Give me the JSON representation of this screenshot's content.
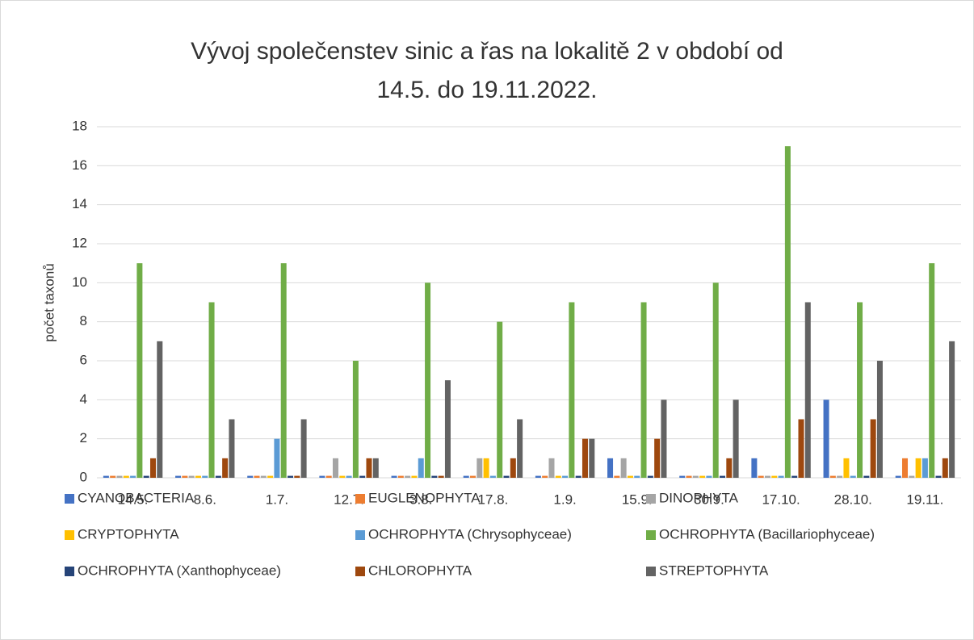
{
  "chart_data": {
    "type": "bar",
    "title": "Vývoj společenstev sinic a řas na lokalitě 2 v období od 14.5. do 19.11.2022.",
    "y_label": "počet taxonů",
    "categories": [
      "14.5.",
      "8.6.",
      "1.7.",
      "12.7.",
      "3.8.",
      "17.8.",
      "1.9.",
      "15.9.",
      "30.9.",
      "17.10.",
      "28.10.",
      "19.11."
    ],
    "series": [
      {
        "name": "CYANOBACTERIA",
        "color": "#4472c4",
        "values": [
          0.1,
          0.1,
          0.1,
          0.1,
          0.1,
          0.1,
          0.1,
          1,
          0.1,
          1,
          4,
          0.1
        ]
      },
      {
        "name": "EUGLENOPHYTA",
        "color": "#ed7d31",
        "values": [
          0.1,
          0.1,
          0.1,
          0.1,
          0.1,
          0.1,
          0.1,
          0.1,
          0.1,
          0.1,
          0.1,
          1
        ]
      },
      {
        "name": "DINOPHYTA",
        "color": "#a5a5a5",
        "values": [
          0.1,
          0.1,
          0.1,
          1,
          0.1,
          1,
          1,
          1,
          0.1,
          0.1,
          0.1,
          0.1
        ]
      },
      {
        "name": "CRYPTOPHYTA",
        "color": "#ffc000",
        "values": [
          0.1,
          0.1,
          0.1,
          0.1,
          0.1,
          1,
          0.1,
          0.1,
          0.1,
          0.1,
          1,
          1
        ]
      },
      {
        "name": "OCHROPHYTA (Chrysophyceae)",
        "color": "#5b9bd5",
        "values": [
          0.1,
          0.1,
          2,
          0.1,
          1,
          0.1,
          0.1,
          0.1,
          0.1,
          0.1,
          0.1,
          1
        ]
      },
      {
        "name": "OCHROPHYTA (Bacillariophyceae)",
        "color": "#70ad47",
        "values": [
          11,
          9,
          11,
          6,
          10,
          8,
          9,
          9,
          10,
          17,
          9,
          11
        ]
      },
      {
        "name": "OCHROPHYTA (Xanthophyceae)",
        "color": "#264478",
        "values": [
          0.1,
          0.1,
          0.1,
          0.1,
          0.1,
          0.1,
          0.1,
          0.1,
          0.1,
          0.1,
          0.1,
          0.1
        ]
      },
      {
        "name": "CHLOROPHYTA",
        "color": "#9e480e",
        "values": [
          1,
          1,
          0.1,
          1,
          0.1,
          1,
          2,
          2,
          1,
          3,
          3,
          1
        ]
      },
      {
        "name": "STREPTOPHYTA",
        "color": "#636363",
        "values": [
          7,
          3,
          3,
          1,
          5,
          3,
          2,
          4,
          4,
          9,
          6,
          7
        ]
      }
    ],
    "ylim": [
      0,
      18
    ],
    "yticks": [
      0,
      2,
      4,
      6,
      8,
      10,
      12,
      14,
      16,
      18
    ],
    "grid": true,
    "legend": "bottom"
  }
}
